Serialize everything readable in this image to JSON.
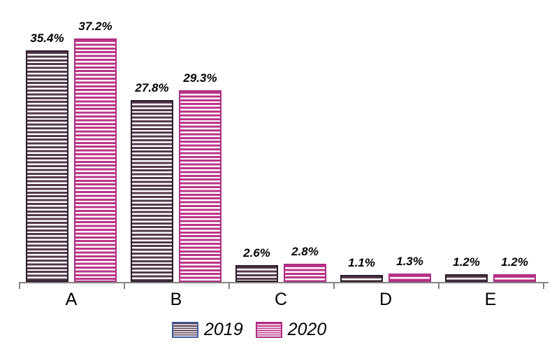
{
  "chart_data": {
    "type": "bar",
    "title": "",
    "xlabel": "",
    "ylabel": "",
    "categories": [
      "A",
      "B",
      "C",
      "D",
      "E"
    ],
    "series": [
      {
        "name": "2019",
        "values": [
          35.4,
          27.8,
          2.6,
          1.1,
          1.2
        ],
        "data_labels": [
          "35.4%",
          "27.8%",
          "2.6%",
          "1.1%",
          "1.2%"
        ],
        "stripe_color": "#54394c",
        "border_color": "#2b1b28",
        "legend_border_color": "#3f5da0"
      },
      {
        "name": "2020",
        "values": [
          37.2,
          29.3,
          2.8,
          1.3,
          1.2
        ],
        "data_labels": [
          "37.2%",
          "29.3%",
          "2.8%",
          "1.3%",
          "1.2%"
        ],
        "stripe_color": "#bb3589",
        "border_color": "#ad2d82",
        "legend_border_color": "#ad2d82"
      }
    ],
    "ylim": [
      0,
      40
    ],
    "grid": false,
    "y_axis_visible": false,
    "legend_position": "bottom",
    "bar_fill_pattern": "horizontal-stripes-on-white"
  },
  "colors": {
    "axis": "#848484",
    "text": "#000000",
    "background": "#ffffff"
  }
}
